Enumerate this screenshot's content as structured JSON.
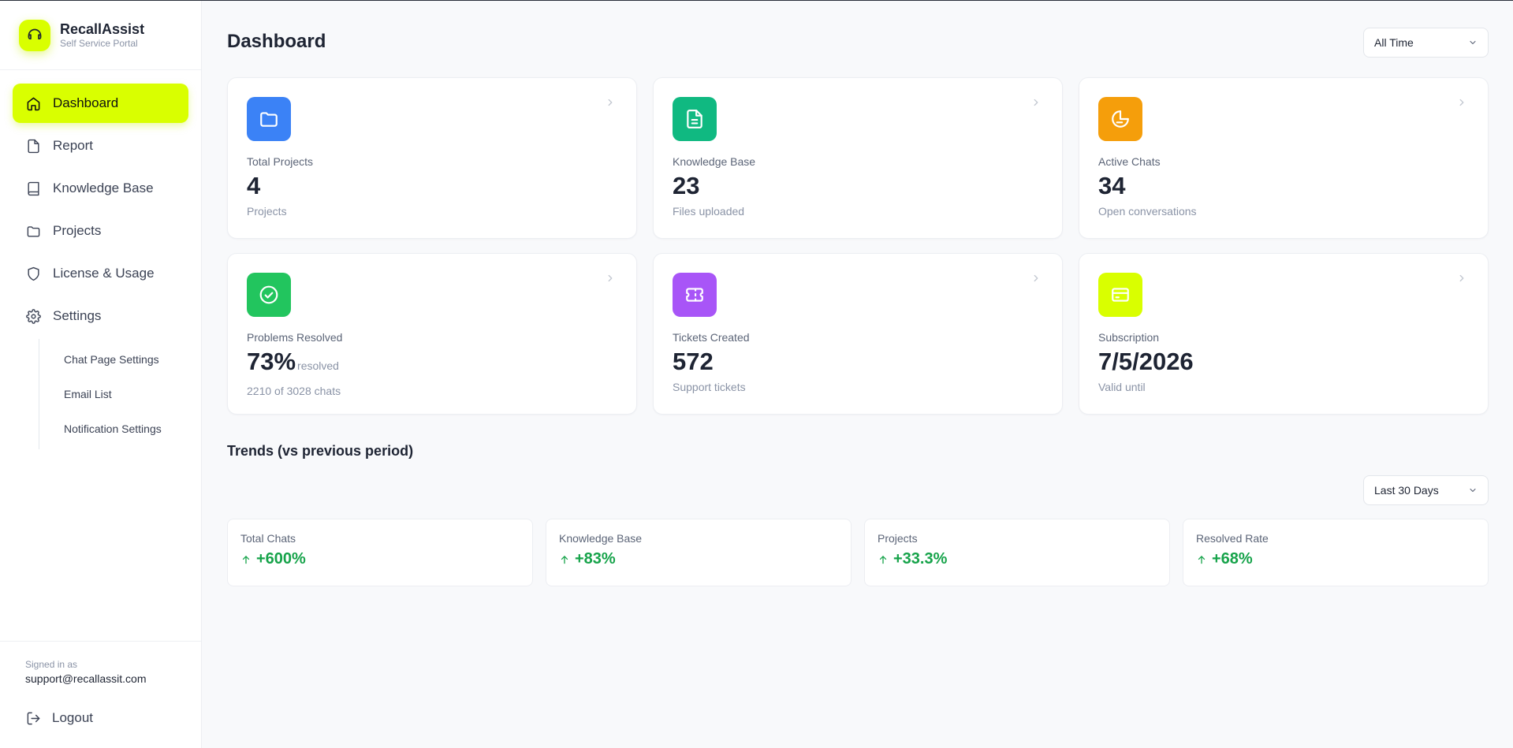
{
  "brand": {
    "name": "RecallAssist",
    "subtitle": "Self Service Portal"
  },
  "sidebar": {
    "items": [
      {
        "label": "Dashboard",
        "icon": "home-icon",
        "active": true
      },
      {
        "label": "Report",
        "icon": "file-icon"
      },
      {
        "label": "Knowledge Base",
        "icon": "book-icon"
      },
      {
        "label": "Projects",
        "icon": "folder-icon"
      },
      {
        "label": "License & Usage",
        "icon": "shield-icon"
      },
      {
        "label": "Settings",
        "icon": "gear-icon"
      }
    ],
    "settings_sub": [
      {
        "label": "Chat Page Settings"
      },
      {
        "label": "Email List"
      },
      {
        "label": "Notification Settings"
      }
    ],
    "signed_in_label": "Signed in as",
    "signed_in_email": "support@recallassit.com",
    "logout_label": "Logout"
  },
  "header": {
    "title": "Dashboard",
    "range_select": "All Time"
  },
  "cards": [
    {
      "label": "Total Projects",
      "value": "4",
      "sub": "Projects",
      "icon": "folder-icon",
      "color": "#3b82f6"
    },
    {
      "label": "Knowledge Base",
      "value": "23",
      "sub": "Files uploaded",
      "icon": "document-icon",
      "color": "#10b981"
    },
    {
      "label": "Active Chats",
      "value": "34",
      "sub": "Open conversations",
      "icon": "chat-icon",
      "color": "#f59e0b"
    },
    {
      "label": "Problems Resolved",
      "value": "73%",
      "value_suffix": "resolved",
      "sub": "2210 of 3028 chats",
      "icon": "check-circle-icon",
      "color": "#22c55e"
    },
    {
      "label": "Tickets Created",
      "value": "572",
      "sub": "Support tickets",
      "icon": "ticket-icon",
      "color": "#a855f7"
    },
    {
      "label": "Subscription",
      "value": "7/5/2026",
      "sub": "Valid until",
      "icon": "credit-card-icon",
      "color": "#d9ff00"
    }
  ],
  "trends": {
    "title": "Trends (vs previous period)",
    "range_select": "Last 30 Days",
    "items": [
      {
        "label": "Total Chats",
        "value": "+600%"
      },
      {
        "label": "Knowledge Base",
        "value": "+83%"
      },
      {
        "label": "Projects",
        "value": "+33.3%"
      },
      {
        "label": "Resolved Rate",
        "value": "+68%"
      }
    ]
  },
  "colors": {
    "accent": "#d9ff00",
    "positive": "#16a34a"
  }
}
